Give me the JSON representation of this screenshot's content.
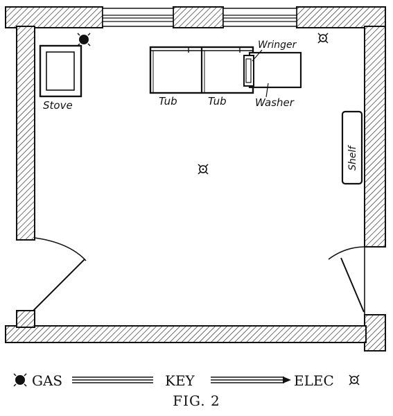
{
  "labels": {
    "stove": "Stove",
    "tub_left": "Tub",
    "tub_right": "Tub",
    "wringer": "Wringer",
    "washer": "Washer",
    "shelf": "Shelf"
  },
  "key": {
    "gas": "GAS",
    "key": "KEY",
    "elec": "ELEC"
  },
  "caption": "FIG. 2"
}
